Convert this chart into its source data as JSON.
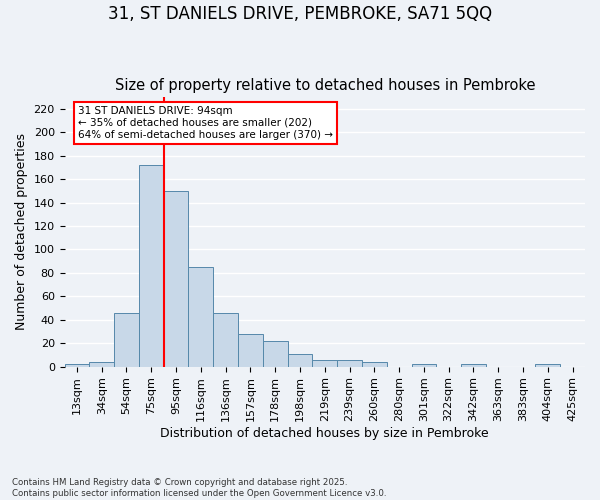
{
  "title_line1": "31, ST DANIELS DRIVE, PEMBROKE, SA71 5QQ",
  "title_line2": "Size of property relative to detached houses in Pembroke",
  "xlabel": "Distribution of detached houses by size in Pembroke",
  "ylabel": "Number of detached properties",
  "footnote": "Contains HM Land Registry data © Crown copyright and database right 2025.\nContains public sector information licensed under the Open Government Licence v3.0.",
  "bin_labels": [
    "13sqm",
    "34sqm",
    "54sqm",
    "75sqm",
    "95sqm",
    "116sqm",
    "136sqm",
    "157sqm",
    "178sqm",
    "198sqm",
    "219sqm",
    "239sqm",
    "260sqm",
    "280sqm",
    "301sqm",
    "322sqm",
    "342sqm",
    "363sqm",
    "383sqm",
    "404sqm",
    "425sqm"
  ],
  "bar_values": [
    2,
    4,
    46,
    172,
    150,
    85,
    46,
    28,
    22,
    11,
    6,
    6,
    4,
    0,
    2,
    0,
    2,
    0,
    0,
    2,
    0
  ],
  "bar_color": "#c8d8e8",
  "bar_edge_color": "#5588aa",
  "vline_x": 4,
  "vline_color": "red",
  "annotation_text": "31 ST DANIELS DRIVE: 94sqm\n← 35% of detached houses are smaller (202)\n64% of semi-detached houses are larger (370) →",
  "annotation_box_color": "white",
  "annotation_box_edge": "red",
  "ylim": [
    0,
    230
  ],
  "yticks": [
    0,
    20,
    40,
    60,
    80,
    100,
    120,
    140,
    160,
    180,
    200,
    220
  ],
  "background_color": "#eef2f7",
  "grid_color": "#ffffff",
  "title_fontsize": 12,
  "subtitle_fontsize": 10.5,
  "axis_label_fontsize": 9,
  "tick_fontsize": 8
}
